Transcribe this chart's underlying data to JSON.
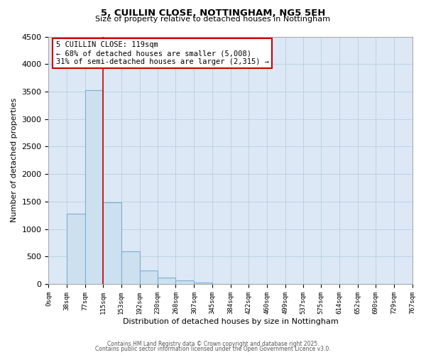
{
  "title": "5, CUILLIN CLOSE, NOTTINGHAM, NG5 5EH",
  "subtitle": "Size of property relative to detached houses in Nottingham",
  "xlabel": "Distribution of detached houses by size in Nottingham",
  "ylabel": "Number of detached properties",
  "bar_color": "#cde0f0",
  "bar_edge_color": "#7bafd4",
  "axes_bg_color": "#dce8f5",
  "background_color": "#ffffff",
  "grid_color": "#b8cfe0",
  "annotation_box_edge_color": "#cc0000",
  "annotation_line1": "5 CUILLIN CLOSE: 119sqm",
  "annotation_line2": "← 68% of detached houses are smaller (5,008)",
  "annotation_line3": "31% of semi-detached houses are larger (2,315) →",
  "property_line_x": 115,
  "bin_edges": [
    0,
    38,
    77,
    115,
    153,
    192,
    230,
    268,
    307,
    345,
    384,
    422,
    460,
    499,
    537,
    575,
    614,
    652,
    690,
    729,
    767
  ],
  "bin_labels": [
    "0sqm",
    "38sqm",
    "77sqm",
    "115sqm",
    "153sqm",
    "192sqm",
    "230sqm",
    "268sqm",
    "307sqm",
    "345sqm",
    "384sqm",
    "422sqm",
    "460sqm",
    "499sqm",
    "537sqm",
    "575sqm",
    "614sqm",
    "652sqm",
    "690sqm",
    "729sqm",
    "767sqm"
  ],
  "counts": [
    0,
    1280,
    3530,
    1490,
    595,
    240,
    120,
    60,
    25,
    5,
    3,
    1,
    0,
    0,
    0,
    0,
    0,
    0,
    0,
    0
  ],
  "ylim": [
    0,
    4500
  ],
  "yticks": [
    0,
    500,
    1000,
    1500,
    2000,
    2500,
    3000,
    3500,
    4000,
    4500
  ],
  "footer_line1": "Contains HM Land Registry data © Crown copyright and database right 2025.",
  "footer_line2": "Contains public sector information licensed under the Open Government Licence v3.0."
}
